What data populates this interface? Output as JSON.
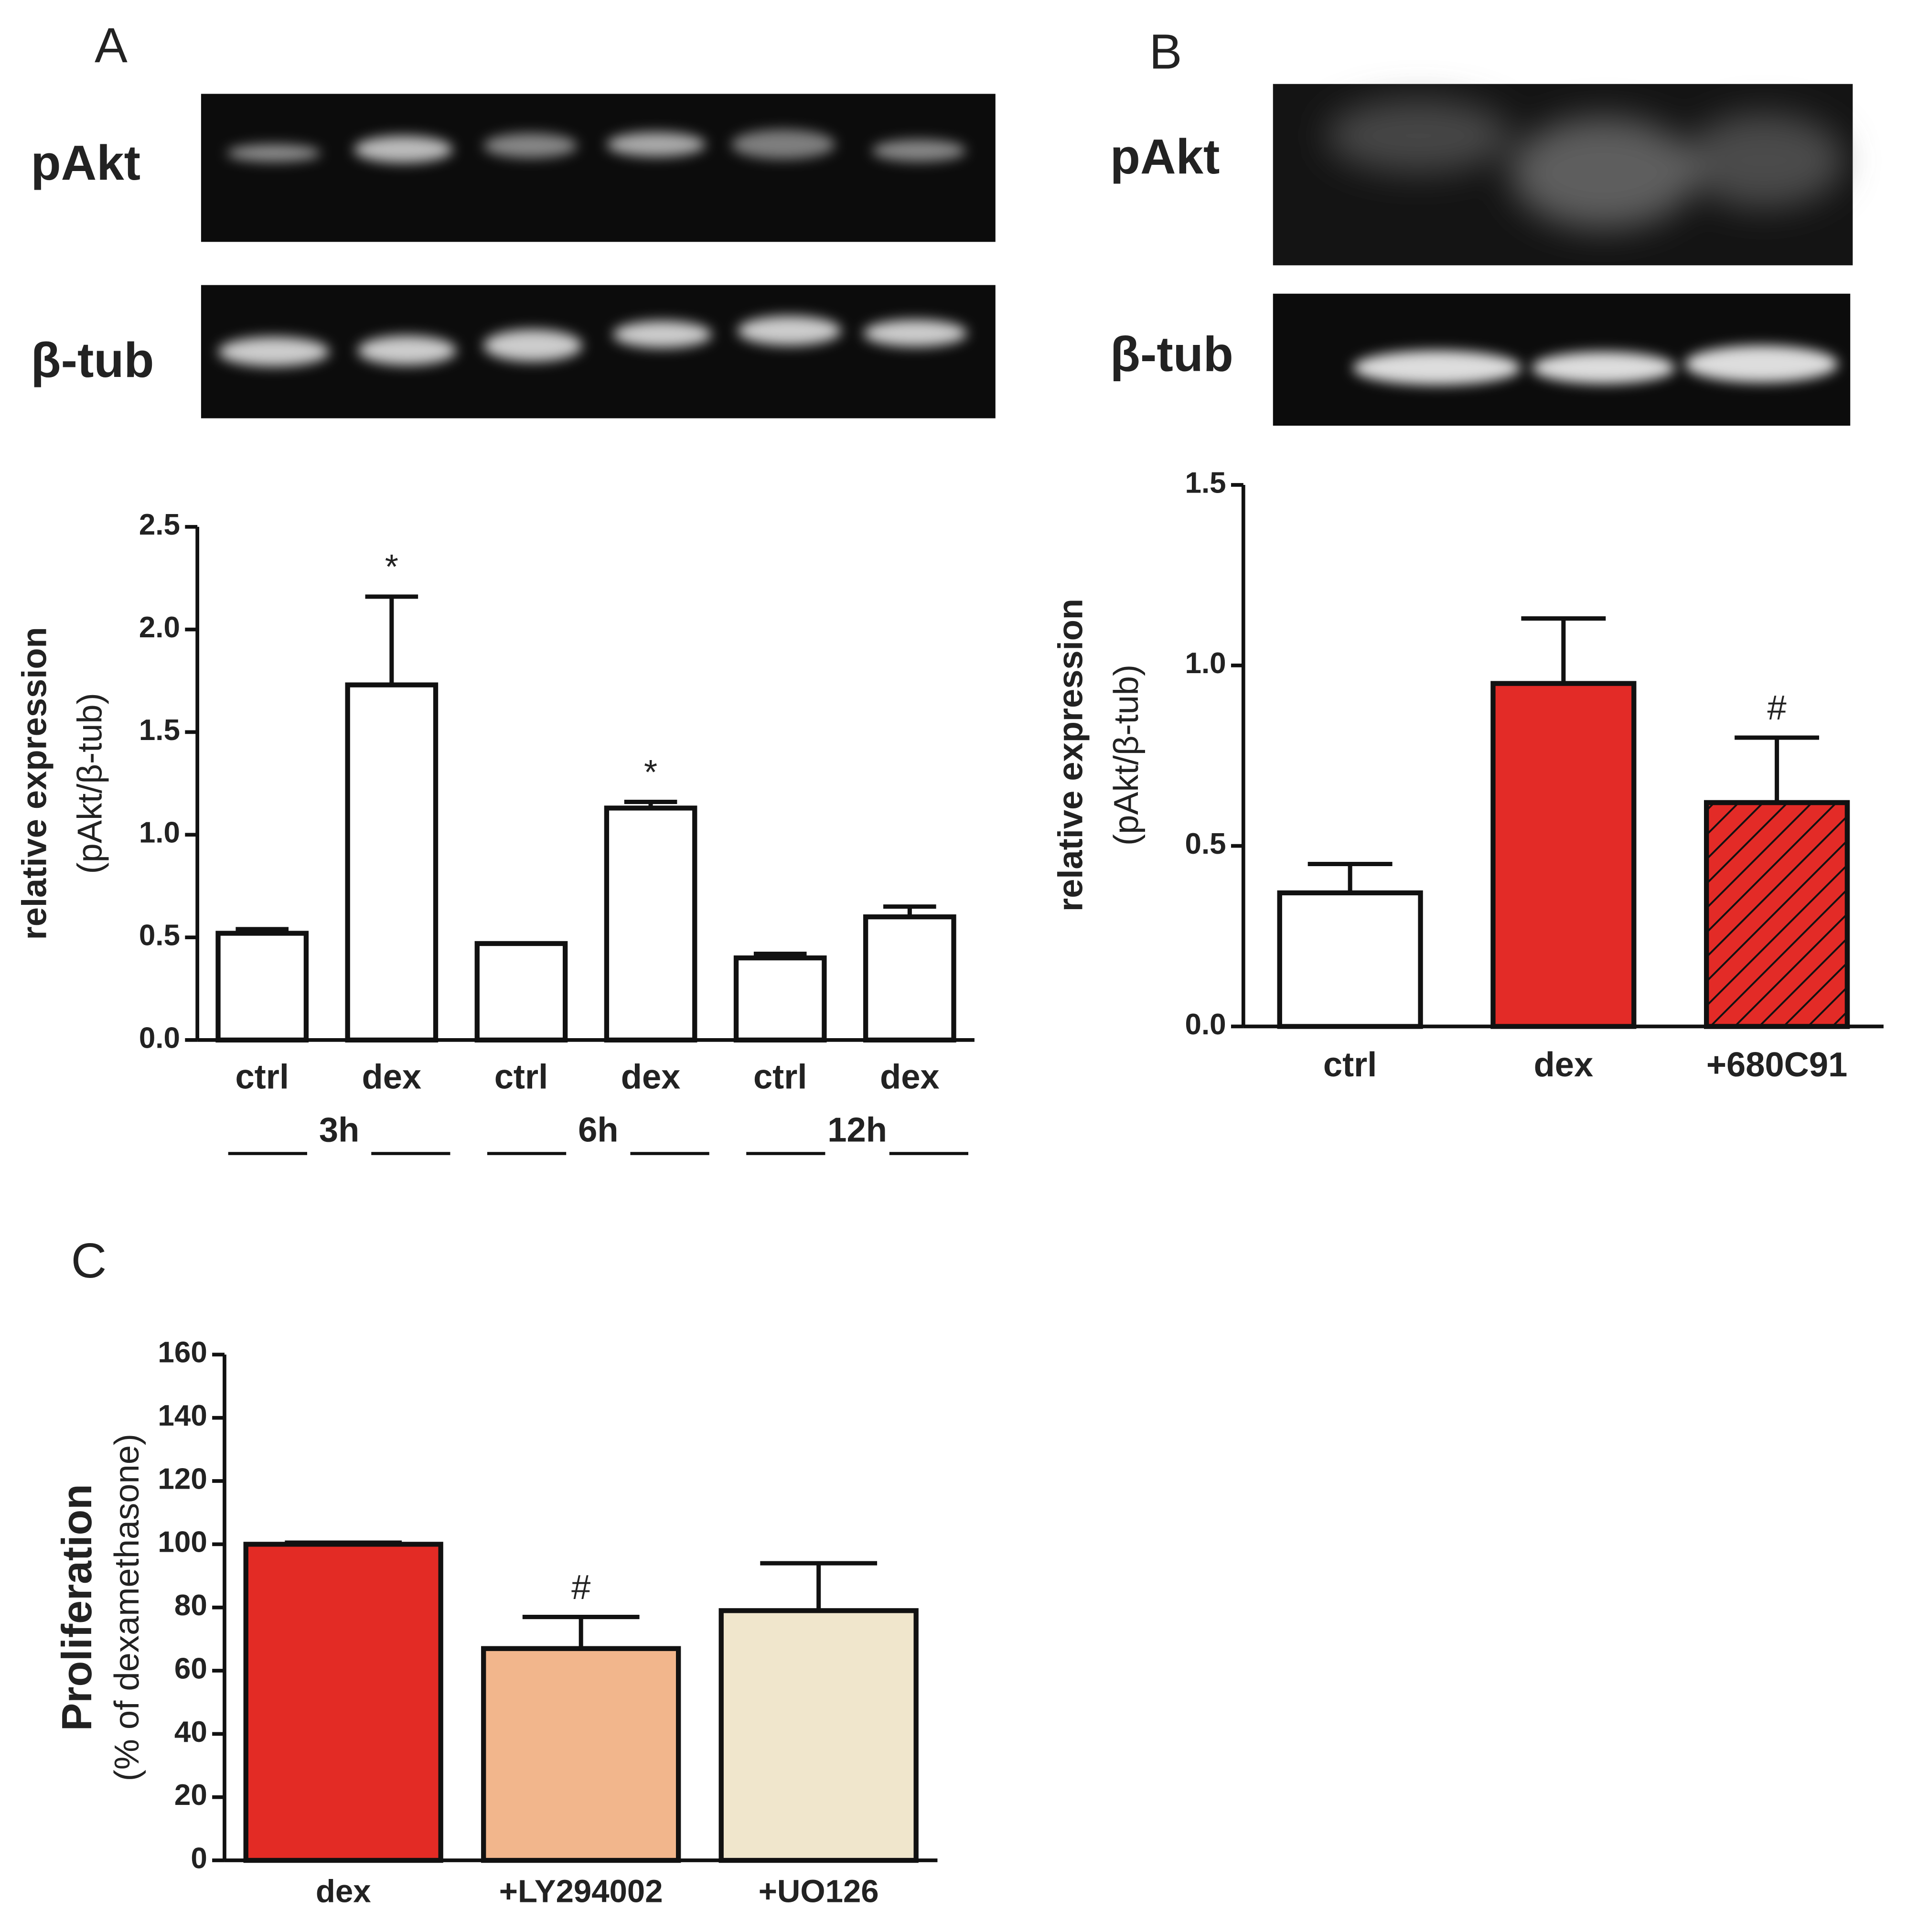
{
  "chart_data": [
    {
      "type": "bar",
      "panel": "A",
      "blot_labels": [
        "pAkt",
        "β-tub"
      ],
      "ylabel": [
        "relative expression",
        "(pAkt/β-tub)"
      ],
      "categories": [
        "ctrl",
        "dex",
        "ctrl",
        "dex",
        "ctrl",
        "dex"
      ],
      "groups": [
        "3h",
        "6h",
        "12h"
      ],
      "values": [
        0.52,
        1.73,
        0.47,
        1.13,
        0.4,
        0.6
      ],
      "errors": [
        0.02,
        0.43,
        0,
        0.03,
        0.02,
        0.05
      ],
      "annotations": [
        null,
        "*",
        null,
        "*",
        null,
        null
      ],
      "colors": [
        "#ffffff",
        "#ffffff",
        "#ffffff",
        "#ffffff",
        "#ffffff",
        "#ffffff"
      ],
      "ylim": [
        0,
        2.5
      ],
      "yticks": [
        {
          "value": 0,
          "label": "0.0"
        },
        0.5,
        {
          "value": 1,
          "label": "1.0"
        },
        1.5,
        {
          "value": 2,
          "label": "2.0"
        },
        2.5
      ]
    },
    {
      "type": "bar",
      "panel": "B",
      "blot_labels": [
        "pAkt",
        "β-tub"
      ],
      "ylabel": [
        "relative expression",
        "(pAkt/β-tub)"
      ],
      "categories": [
        "ctrl",
        "dex",
        "+680C91"
      ],
      "values": [
        0.37,
        0.95,
        0.62
      ],
      "errors": [
        0.08,
        0.18,
        0.18
      ],
      "annotations": [
        null,
        null,
        "#"
      ],
      "colors": [
        "#ffffff",
        "#e32b27",
        "#e32b27"
      ],
      "hatch": [
        false,
        false,
        true
      ],
      "ylim": [
        0,
        1.5
      ],
      "yticks": [
        {
          "value": 0,
          "label": "0.0"
        },
        0.5,
        {
          "value": 1,
          "label": "1.0"
        },
        1.5
      ]
    },
    {
      "type": "bar",
      "panel": "C",
      "ylabel": [
        "Proliferation",
        "(% of dexamethasone)"
      ],
      "categories": [
        "dex",
        "+LY294002",
        "+UO126"
      ],
      "values": [
        100,
        67,
        79
      ],
      "errors": [
        0.5,
        10,
        15
      ],
      "annotations": [
        null,
        "#",
        null
      ],
      "colors": [
        "#e32b25",
        "#f2b68c",
        "#f0e6cc"
      ],
      "ylim": [
        0,
        160
      ],
      "yticks": [
        0,
        20,
        40,
        60,
        80,
        100,
        120,
        140,
        160
      ]
    }
  ]
}
